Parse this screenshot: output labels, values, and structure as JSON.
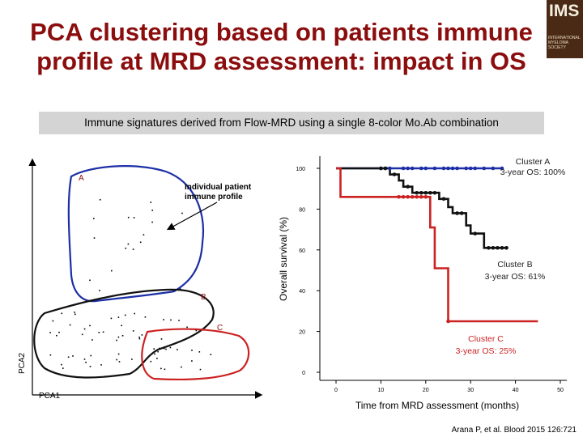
{
  "slide": {
    "title_line1": "PCA clustering based on patients immune",
    "title_line2": "profile at MRD assessment: impact in OS",
    "subtitle": "Immune signatures derived from Flow-MRD using a single 8-color Mo.Ab combination",
    "logo": {
      "text": "IMS",
      "subtext": "INTERNATIONAL MYELOMA SOCIETY"
    },
    "reference": "Arana P, et al. Blood 2015 126:721"
  },
  "pca_panel": {
    "x_label": "PCA1",
    "y_label": "PCA2",
    "annotation": "Individual patient immune profile",
    "clusters": [
      {
        "label": "A",
        "color": "#1c2fa6"
      },
      {
        "label": "B",
        "color": "#111111"
      },
      {
        "label": "C",
        "color": "#cc2222"
      }
    ]
  },
  "chart_data": {
    "type": "line",
    "title": "",
    "xlabel": "Time from MRD assessment (months)",
    "ylabel": "Overall survival (%)",
    "xlim": [
      0,
      50
    ],
    "ylim": [
      0,
      100
    ],
    "xticks": [
      0,
      10,
      20,
      30,
      40,
      50
    ],
    "yticks": [
      0,
      20,
      40,
      60,
      80,
      100
    ],
    "grid": false,
    "series": [
      {
        "label": "Cluster A",
        "note": "3-year OS: 100%",
        "color": "#1c2fa6",
        "steps": [
          [
            0,
            100
          ],
          [
            37,
            100
          ]
        ],
        "censored": [
          10,
          11,
          12,
          15,
          16,
          17,
          19,
          20,
          22,
          24,
          25,
          26,
          27,
          29,
          30,
          31,
          33,
          35,
          37
        ]
      },
      {
        "label": "Cluster B",
        "note": "3-year OS: 61%",
        "color": "#111111",
        "steps": [
          [
            0,
            100
          ],
          [
            12,
            100
          ],
          [
            12,
            97
          ],
          [
            14,
            97
          ],
          [
            14,
            94
          ],
          [
            15,
            94
          ],
          [
            15,
            91
          ],
          [
            17,
            91
          ],
          [
            17,
            88
          ],
          [
            23,
            88
          ],
          [
            23,
            85
          ],
          [
            25,
            85
          ],
          [
            25,
            81
          ],
          [
            26,
            81
          ],
          [
            26,
            78
          ],
          [
            29,
            78
          ],
          [
            29,
            72
          ],
          [
            30,
            72
          ],
          [
            30,
            68
          ],
          [
            33,
            68
          ],
          [
            33,
            61
          ],
          [
            38,
            61
          ]
        ],
        "censored": [
          10,
          11,
          13,
          16,
          18,
          19,
          20,
          21,
          22,
          24,
          27,
          28,
          31,
          34,
          35,
          36,
          37,
          38
        ]
      },
      {
        "label": "Cluster C",
        "note": "3-year OS: 25%",
        "color": "#cc2222",
        "steps": [
          [
            0,
            100
          ],
          [
            1,
            100
          ],
          [
            1,
            86
          ],
          [
            21,
            86
          ],
          [
            21,
            71
          ],
          [
            22,
            71
          ],
          [
            22,
            51
          ],
          [
            25,
            51
          ],
          [
            25,
            25
          ],
          [
            45,
            25
          ]
        ],
        "censored": [
          14,
          15,
          16,
          17,
          18,
          19,
          20,
          25
        ]
      }
    ]
  }
}
